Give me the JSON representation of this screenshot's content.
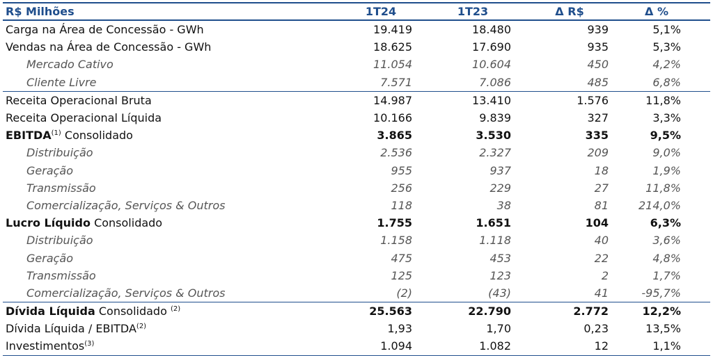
{
  "header": {
    "col0": "R$ Milhões",
    "col1": "1T24",
    "col2": "1T23",
    "col3": "Δ R$",
    "col4": "Δ %"
  },
  "rows": [
    {
      "label": "Carga na Área de Concessão - GWh",
      "v1": "19.419",
      "v2": "18.480",
      "v3": "939",
      "v4": "5,1%"
    },
    {
      "label": "Vendas na Área de Concessão - GWh",
      "v1": "18.625",
      "v2": "17.690",
      "v3": "935",
      "v4": "5,3%"
    },
    {
      "label": "Mercado Cativo",
      "v1": "11.054",
      "v2": "10.604",
      "v3": "450",
      "v4": "4,2%"
    },
    {
      "label": "Cliente Livre",
      "v1": "7.571",
      "v2": "7.086",
      "v3": "485",
      "v4": "6,8%"
    },
    {
      "label": "Receita Operacional Bruta",
      "v1": "14.987",
      "v2": "13.410",
      "v3": "1.576",
      "v4": "11,8%"
    },
    {
      "label": "Receita Operacional Líquida",
      "v1": "10.166",
      "v2": "9.839",
      "v3": "327",
      "v4": "3,3%"
    },
    {
      "label_bold": "EBITDA",
      "label_sup": "(1)",
      "label_rest": " Consolidado",
      "v1": "3.865",
      "v2": "3.530",
      "v3": "335",
      "v4": "9,5%"
    },
    {
      "label": "Distribuição",
      "v1": "2.536",
      "v2": "2.327",
      "v3": "209",
      "v4": "9,0%"
    },
    {
      "label": "Geração",
      "v1": "955",
      "v2": "937",
      "v3": "18",
      "v4": "1,9%"
    },
    {
      "label": "Transmissão",
      "v1": "256",
      "v2": "229",
      "v3": "27",
      "v4": "11,8%"
    },
    {
      "label": "Comercialização, Serviços & Outros",
      "v1": "118",
      "v2": "38",
      "v3": "81",
      "v4": "214,0%"
    },
    {
      "label_bold": "Lucro Líquido",
      "label_rest": " Consolidado",
      "v1": "1.755",
      "v2": "1.651",
      "v3": "104",
      "v4": "6,3%"
    },
    {
      "label": "Distribuição",
      "v1": "1.158",
      "v2": "1.118",
      "v3": "40",
      "v4": "3,6%"
    },
    {
      "label": "Geração",
      "v1": "475",
      "v2": "453",
      "v3": "22",
      "v4": "4,8%"
    },
    {
      "label": "Transmissão",
      "v1": "125",
      "v2": "123",
      "v3": "2",
      "v4": "1,7%"
    },
    {
      "label": "Comercialização, Serviços & Outros",
      "v1": "(2)",
      "v2": "(43)",
      "v3": "41",
      "v4": "-95,7%"
    },
    {
      "label_bold": "Dívida Líquida",
      "label_rest": " Consolidado ",
      "label_sup": "(2)",
      "v1": "25.563",
      "v2": "22.790",
      "v3": "2.772",
      "v4": "12,2%"
    },
    {
      "label": "Dívida Líquida / EBITDA",
      "label_sup": "(2)",
      "v1": "1,93",
      "v2": "1,70",
      "v3": "0,23",
      "v4": "13,5%"
    },
    {
      "label": "Investimentos",
      "label_sup": "(3)",
      "v1": "1.094",
      "v2": "1.082",
      "v3": "12",
      "v4": "1,1%"
    }
  ]
}
